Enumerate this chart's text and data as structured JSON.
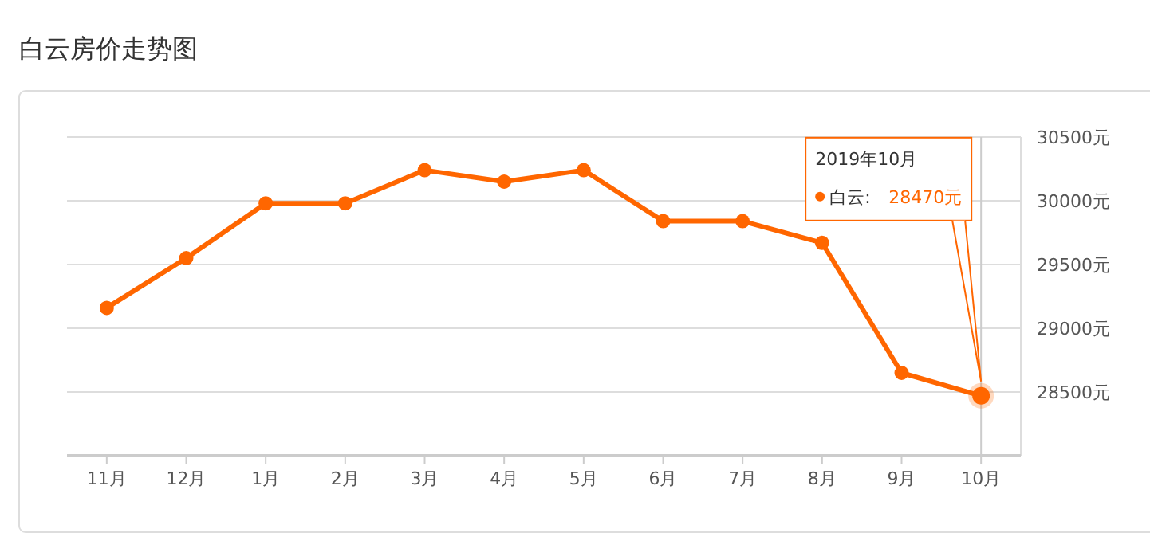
{
  "chart_data": {
    "type": "line",
    "title": "白云房价走势图",
    "categories": [
      "11月",
      "12月",
      "1月",
      "2月",
      "3月",
      "4月",
      "5月",
      "6月",
      "7月",
      "8月",
      "9月",
      "10月"
    ],
    "series": [
      {
        "name": "白云:",
        "color": "#ff6600",
        "values": [
          29160,
          29550,
          29980,
          29980,
          30240,
          30150,
          30240,
          29840,
          29840,
          29670,
          28650,
          28470
        ],
        "value_labels": [
          null,
          null,
          null,
          null,
          null,
          null,
          null,
          null,
          null,
          null,
          null,
          "28470元"
        ]
      }
    ],
    "ylim": [
      28000,
      30500
    ],
    "yticks": [
      {
        "value": 28500,
        "label": "28500元"
      },
      {
        "value": 29000,
        "label": "29000元"
      },
      {
        "value": 29500,
        "label": "29500元"
      },
      {
        "value": 30000,
        "label": "30000元"
      },
      {
        "value": 30500,
        "label": "30500元"
      }
    ],
    "grid": "y",
    "marker": "circle",
    "legend": "top right",
    "ref_lines": [
      {
        "axis": "x",
        "value": "10月",
        "color": "#cccccc"
      }
    ],
    "annotations": [
      "2019年10月"
    ]
  }
}
